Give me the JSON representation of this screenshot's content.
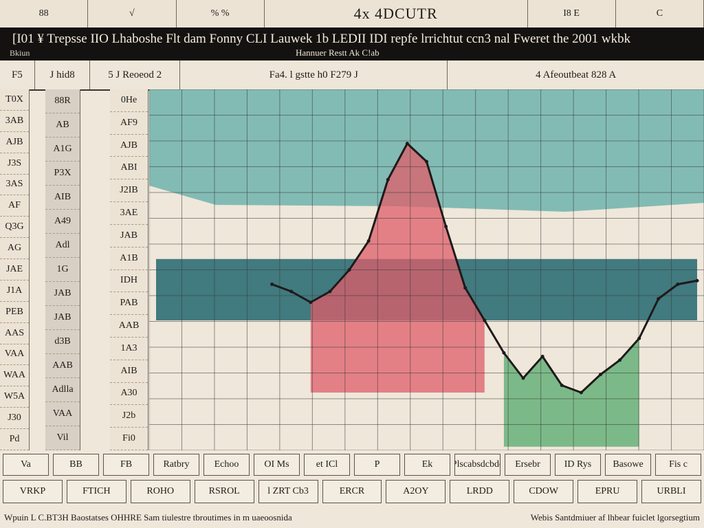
{
  "tabs": [
    {
      "label": "88"
    },
    {
      "label": "√"
    },
    {
      "label": "% %"
    },
    {
      "label": "",
      "title": true,
      "text": "4x 4DCUTR"
    },
    {
      "label": "I8 E"
    },
    {
      "label": "C"
    }
  ],
  "banner": {
    "headline": "[I01 ¥ Trepsse IIO Lhaboshe Flt dam Fonny CLI Lauwek 1b LEDII IDI repfe lrrichtut ccn3 nal Fweret the 2001 wkbk",
    "corner": "Bkiun",
    "subtitle": "Hannuer Restt Ak C!ab"
  },
  "header_cells": [
    "F5",
    "J hid8",
    "5 J Reoeod 2",
    "Fa4. l gstte h0 F279 J",
    "4 Afeoutbeat 828 A"
  ],
  "left_columns": {
    "col1": [
      "T0X",
      "3AB",
      "AJB",
      "J3S",
      "3AS",
      "AF",
      "Q3G",
      "AG",
      "JAE",
      "J1A",
      "PEB",
      "AAS",
      "VAA",
      "WAA",
      "W5A",
      "J30",
      "Pd"
    ],
    "col2": [
      "88R",
      "AB",
      "A1G",
      "P3X",
      "AIB",
      "A49",
      "Adl",
      "1G",
      "JAB",
      "JAB",
      "d3B",
      "AAB",
      "Adlla",
      "VAA",
      "Vil"
    ],
    "col3": [
      "0He",
      "AF9",
      "AJB",
      "ABI",
      "J2IB",
      "3AE",
      "JAB",
      "A1B",
      "IDH",
      "PAB",
      "AAB",
      "1A3",
      "AIB",
      "A30",
      "J2b",
      "Fi0"
    ]
  },
  "chart_data": {
    "type": "line",
    "x": [
      0,
      1,
      2,
      3,
      4,
      5,
      6,
      7,
      8,
      9,
      10,
      11,
      12,
      13,
      14,
      15,
      16,
      17,
      18,
      19,
      20,
      21,
      22,
      23,
      24,
      25,
      26,
      27,
      28
    ],
    "series": [
      {
        "values": [
          null,
          null,
          null,
          null,
          null,
          null,
          46,
          44,
          41,
          44,
          50,
          58,
          75,
          85,
          80,
          62,
          45,
          36,
          27,
          20,
          26,
          18,
          16,
          21,
          25,
          31,
          42,
          46,
          47
        ]
      }
    ],
    "ylim": [
      0,
      100
    ],
    "grid": true,
    "colors": {
      "teal": "#6fb3ad",
      "dark_teal": "#2e6e74",
      "red": "#df5d6a",
      "green": "#5fae73",
      "line": "#1e1a1a",
      "grid": "#3b3b3b",
      "paper": "#efe7da"
    }
  },
  "buttons_row1": [
    "Va",
    "BB",
    "FB",
    "Ratbry",
    "Echoo",
    "OI Ms",
    "et ICl",
    "P",
    "Ek",
    "Plscabsdcbde",
    "Ersebr",
    "ID Rys",
    "Basowe",
    "Fis c"
  ],
  "buttons_row2": [
    "VRKP",
    "FTICH",
    "ROHO",
    "RSROL",
    "l ZRT Cb3",
    "ERCR",
    "A2OY",
    "LRDD",
    "CDOW",
    "EPRU",
    "URBLI"
  ],
  "footer": {
    "left": "Wpuin L C.BT3H Baostatses OHHRE Sam tiulestre tbroutimes in m uaeoosnida",
    "right": "Webis Santdmiuer af lhbear fuiclet lgorsegtium"
  }
}
